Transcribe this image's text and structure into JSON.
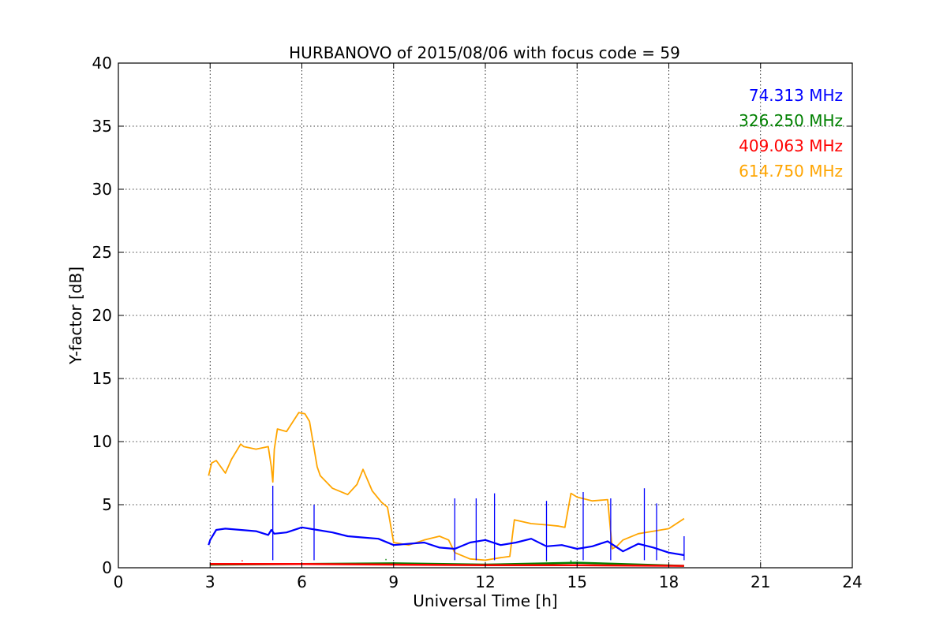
{
  "chart_data": {
    "type": "line",
    "title": "HURBANOVO of 2015/08/06 with focus code = 59",
    "xlabel": "Universal Time [h]",
    "ylabel": "Y-factor [dB]",
    "xlim": [
      0,
      24
    ],
    "ylim": [
      0,
      40
    ],
    "xticks": [
      0,
      3,
      6,
      9,
      12,
      15,
      18,
      21,
      24
    ],
    "yticks": [
      0,
      5,
      10,
      15,
      20,
      25,
      30,
      35,
      40
    ],
    "grid": true,
    "legend_position": "top-right",
    "series": [
      {
        "name": "74.313 MHz",
        "color": "#0000ff",
        "x": [
          2.95,
          3.0,
          3.2,
          3.5,
          4.0,
          4.5,
          4.9,
          5.0,
          5.1,
          5.5,
          6.0,
          6.5,
          7.0,
          7.5,
          8.0,
          8.5,
          9.0,
          9.5,
          10.0,
          10.5,
          11.0,
          11.5,
          12.0,
          12.5,
          13.0,
          13.5,
          14.0,
          14.5,
          15.0,
          15.5,
          16.0,
          16.5,
          17.0,
          17.5,
          18.0,
          18.5
        ],
        "y": [
          1.8,
          2.2,
          3.0,
          3.1,
          3.0,
          2.9,
          2.6,
          3.0,
          2.7,
          2.8,
          3.2,
          3.0,
          2.8,
          2.5,
          2.4,
          2.3,
          1.8,
          1.9,
          2.0,
          1.6,
          1.5,
          2.0,
          2.2,
          1.8,
          2.0,
          2.3,
          1.7,
          1.8,
          1.5,
          1.7,
          2.1,
          1.3,
          1.9,
          1.6,
          1.2,
          1.0
        ],
        "spikes": [
          [
            5.05,
            6.5
          ],
          [
            6.4,
            5.0
          ],
          [
            11.0,
            5.5
          ],
          [
            11.7,
            5.5
          ],
          [
            12.3,
            5.9
          ],
          [
            14.0,
            5.3
          ],
          [
            15.2,
            6.0
          ],
          [
            16.1,
            5.5
          ],
          [
            17.2,
            6.3
          ],
          [
            17.6,
            5.1
          ],
          [
            18.5,
            2.5
          ]
        ]
      },
      {
        "name": "326.250 MHz",
        "color": "#008000",
        "x": [
          3.0,
          6.0,
          9.0,
          12.0,
          15.0,
          18.5
        ],
        "y": [
          0.25,
          0.3,
          0.35,
          0.25,
          0.4,
          0.15
        ],
        "spikes": [
          [
            8.75,
            0.7
          ],
          [
            13.3,
            0.6
          ],
          [
            14.0,
            0.5
          ],
          [
            14.8,
            0.45
          ]
        ]
      },
      {
        "name": "409.063 MHz",
        "color": "#ff0000",
        "x": [
          3.0,
          6.0,
          9.0,
          12.0,
          15.0,
          18.5
        ],
        "y": [
          0.3,
          0.3,
          0.25,
          0.2,
          0.2,
          0.15
        ],
        "spikes": [
          [
            4.05,
            0.5
          ]
        ]
      },
      {
        "name": "614.750 MHz",
        "color": "#ffa500",
        "x": [
          2.95,
          3.05,
          3.2,
          3.5,
          3.7,
          4.0,
          4.1,
          4.5,
          4.9,
          5.0,
          5.05,
          5.1,
          5.2,
          5.5,
          5.9,
          6.1,
          6.25,
          6.5,
          6.6,
          7.0,
          7.5,
          7.8,
          8.0,
          8.3,
          8.6,
          8.8,
          9.0,
          9.5,
          10.0,
          10.5,
          10.8,
          11.0,
          11.5,
          12.0,
          12.5,
          12.8,
          12.95,
          13.5,
          14.0,
          14.4,
          14.6,
          14.8,
          15.0,
          15.5,
          16.0,
          16.15,
          16.3,
          16.5,
          17.0,
          17.5,
          18.0,
          18.5
        ],
        "y": [
          7.3,
          8.3,
          8.5,
          7.5,
          8.6,
          9.8,
          9.6,
          9.4,
          9.6,
          8.0,
          6.8,
          9.4,
          11.0,
          10.8,
          12.3,
          12.2,
          11.6,
          8.0,
          7.3,
          6.3,
          5.8,
          6.6,
          7.8,
          6.1,
          5.2,
          4.8,
          2.0,
          1.8,
          2.2,
          2.5,
          2.2,
          1.2,
          0.7,
          0.6,
          0.8,
          0.9,
          3.8,
          3.5,
          3.4,
          3.3,
          3.2,
          5.9,
          5.6,
          5.3,
          5.4,
          1.5,
          1.7,
          2.2,
          2.7,
          2.9,
          3.1,
          3.9
        ]
      }
    ]
  }
}
